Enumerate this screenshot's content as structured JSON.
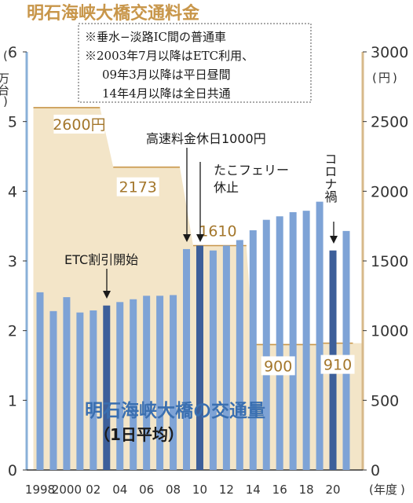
{
  "title": "明石海峡大橋交通料金",
  "notes": [
    "※垂水−淡路IC間の普通車",
    "※2003年7月以降はETC利用、",
    "09年3月以降は平日昼間",
    "14年4月以降は全日共通"
  ],
  "left_unit": "万台",
  "right_unit": "円",
  "x_unit": "年度",
  "annotations": {
    "etc": "ETC割引開始",
    "kosoku": "高速料金休日1000円",
    "ferry_1": "たこフェリー",
    "ferry_2": "休止",
    "corona": "コロナ禍"
  },
  "traffic_title": "明石海峡大橋の交通量",
  "traffic_subtitle": "（1日平均）",
  "colors": {
    "bar": "#7ea3d6",
    "bar_highlight": "#3d5f9a",
    "toll_area": "#f3e5c8",
    "toll_line": "#c8964a",
    "toll_text": "#a4772c",
    "title": "#c8964a",
    "traffic_title": "#3a6fb0"
  },
  "chart_data": {
    "type": "bar",
    "x": [
      1998,
      1999,
      2000,
      2001,
      2002,
      2003,
      2004,
      2005,
      2006,
      2007,
      2008,
      2009,
      2010,
      2011,
      2012,
      2013,
      2014,
      2015,
      2016,
      2017,
      2018,
      2019,
      2020,
      2021
    ],
    "x_tick_labels": [
      "1998",
      "2000",
      "02",
      "04",
      "06",
      "08",
      "10",
      "12",
      "14",
      "16",
      "18",
      "20"
    ],
    "series": [
      {
        "name": "明石海峡大橋の交通量",
        "axis": "left",
        "values": [
          2.55,
          2.28,
          2.48,
          2.26,
          2.29,
          2.36,
          2.41,
          2.45,
          2.5,
          2.5,
          2.51,
          3.17,
          3.22,
          3.15,
          3.22,
          3.3,
          3.44,
          3.59,
          3.64,
          3.7,
          3.72,
          3.85,
          3.15,
          3.43
        ],
        "highlight_years": [
          2003,
          2010,
          2020
        ]
      }
    ],
    "toll": {
      "axis": "right",
      "type": "area",
      "points": [
        {
          "x": 1998,
          "y": 2600
        },
        {
          "x": 2002.5,
          "y": 2600
        },
        {
          "x": 2003.5,
          "y": 2173
        },
        {
          "x": 2008.5,
          "y": 2173
        },
        {
          "x": 2009.5,
          "y": 1610
        },
        {
          "x": 2013.5,
          "y": 1610
        },
        {
          "x": 2014,
          "y": 900
        },
        {
          "x": 2019,
          "y": 900
        },
        {
          "x": 2019,
          "y": 910
        },
        {
          "x": 2021.5,
          "y": 910
        }
      ],
      "labels": [
        "2600円",
        "2173",
        "1610",
        "900",
        "910"
      ]
    },
    "left_ticks": [
      "0",
      "1",
      "2",
      "3",
      "4",
      "5",
      "6"
    ],
    "right_ticks": [
      "0",
      "500",
      "1000",
      "1500",
      "2000",
      "2500",
      "3000"
    ],
    "ylim_left": [
      0,
      6
    ],
    "ylim_right": [
      0,
      3000
    ],
    "grid": false
  }
}
